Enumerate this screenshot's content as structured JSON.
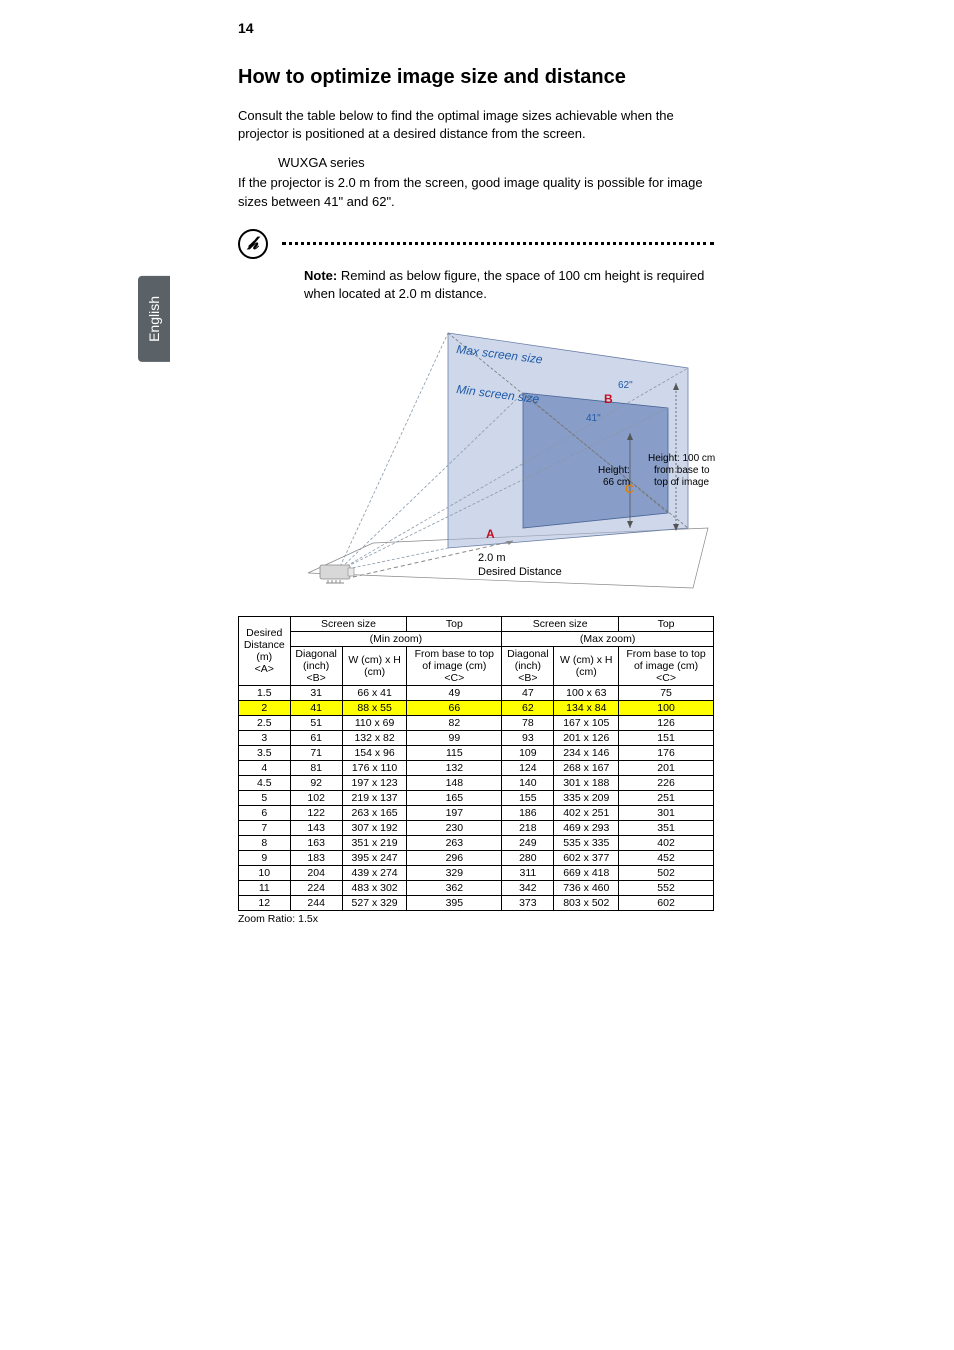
{
  "page_number": "14",
  "side_tab": "English",
  "heading": "How to optimize image size and distance",
  "intro": "Consult the table below to find the optimal image sizes achievable when the projector is positioned at a desired distance from the screen.",
  "series_label": "WUXGA series",
  "example_text": "If the projector is 2.0 m from the screen, good image quality is possible for image sizes between 41\" and 62\".",
  "note_bold": "Note:",
  "note_text": " Remind as below figure, the space of 100 cm height is required when located at 2.0 m distance.",
  "diagram": {
    "max_label": "Max screen size",
    "min_label": "Min screen size",
    "b_label": "B",
    "b_size": "62\"",
    "b_size2": "41\"",
    "a_label": "A",
    "a_value": "2.0 m",
    "desired_distance": "Desired Distance",
    "c_label": "C",
    "height_label": "Height:",
    "height_val": "66 cm",
    "height_note": "Height: 100 cm from base to top of image",
    "color_max_line": "#1e5aa8",
    "color_min_line": "#1e5aa8",
    "color_b": "#c01020",
    "color_a": "#c01020",
    "color_c": "#e08000",
    "screen_fill_outer": "#a8b8d8",
    "screen_fill_inner": "#6a85b8",
    "projector_fill": "#d8d8d8"
  },
  "table": {
    "header_group1": "Screen size",
    "header_top": "Top",
    "header_minzoom": "(Min zoom)",
    "header_maxzoom": "(Max zoom)",
    "header_desired": "Desired Distance (m) <A>",
    "header_diag": "Diagonal (inch) <B>",
    "header_wh": "W (cm) x H (cm)",
    "header_basetotop": "From base to top of image (cm) <C>",
    "rows": [
      {
        "d": "1.5",
        "min_diag": "31",
        "min_wh": "66 x 41",
        "min_top": "49",
        "max_diag": "47",
        "max_wh": "100 x 63",
        "max_top": "75",
        "hl": false
      },
      {
        "d": "2",
        "min_diag": "41",
        "min_wh": "88 x 55",
        "min_top": "66",
        "max_diag": "62",
        "max_wh": "134 x 84",
        "max_top": "100",
        "hl": true
      },
      {
        "d": "2.5",
        "min_diag": "51",
        "min_wh": "110 x 69",
        "min_top": "82",
        "max_diag": "78",
        "max_wh": "167 x 105",
        "max_top": "126",
        "hl": false
      },
      {
        "d": "3",
        "min_diag": "61",
        "min_wh": "132 x 82",
        "min_top": "99",
        "max_diag": "93",
        "max_wh": "201 x 126",
        "max_top": "151",
        "hl": false
      },
      {
        "d": "3.5",
        "min_diag": "71",
        "min_wh": "154 x 96",
        "min_top": "115",
        "max_diag": "109",
        "max_wh": "234 x 146",
        "max_top": "176",
        "hl": false
      },
      {
        "d": "4",
        "min_diag": "81",
        "min_wh": "176 x 110",
        "min_top": "132",
        "max_diag": "124",
        "max_wh": "268 x 167",
        "max_top": "201",
        "hl": false
      },
      {
        "d": "4.5",
        "min_diag": "92",
        "min_wh": "197 x 123",
        "min_top": "148",
        "max_diag": "140",
        "max_wh": "301 x 188",
        "max_top": "226",
        "hl": false
      },
      {
        "d": "5",
        "min_diag": "102",
        "min_wh": "219 x 137",
        "min_top": "165",
        "max_diag": "155",
        "max_wh": "335 x 209",
        "max_top": "251",
        "hl": false
      },
      {
        "d": "6",
        "min_diag": "122",
        "min_wh": "263 x 165",
        "min_top": "197",
        "max_diag": "186",
        "max_wh": "402 x 251",
        "max_top": "301",
        "hl": false
      },
      {
        "d": "7",
        "min_diag": "143",
        "min_wh": "307 x 192",
        "min_top": "230",
        "max_diag": "218",
        "max_wh": "469 x 293",
        "max_top": "351",
        "hl": false
      },
      {
        "d": "8",
        "min_diag": "163",
        "min_wh": "351 x 219",
        "min_top": "263",
        "max_diag": "249",
        "max_wh": "535 x 335",
        "max_top": "402",
        "hl": false
      },
      {
        "d": "9",
        "min_diag": "183",
        "min_wh": "395 x 247",
        "min_top": "296",
        "max_diag": "280",
        "max_wh": "602 x 377",
        "max_top": "452",
        "hl": false
      },
      {
        "d": "10",
        "min_diag": "204",
        "min_wh": "439 x 274",
        "min_top": "329",
        "max_diag": "311",
        "max_wh": "669 x 418",
        "max_top": "502",
        "hl": false
      },
      {
        "d": "11",
        "min_diag": "224",
        "min_wh": "483 x 302",
        "min_top": "362",
        "max_diag": "342",
        "max_wh": "736 x 460",
        "max_top": "552",
        "hl": false
      },
      {
        "d": "12",
        "min_diag": "244",
        "min_wh": "527 x 329",
        "min_top": "395",
        "max_diag": "373",
        "max_wh": "803 x 502",
        "max_top": "602",
        "hl": false
      }
    ],
    "zoom_ratio": "Zoom Ratio: 1.5x"
  }
}
